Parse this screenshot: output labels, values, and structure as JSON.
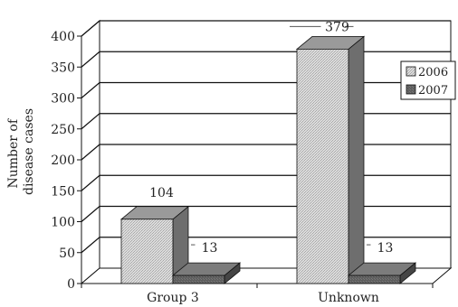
{
  "chart_data": {
    "type": "bar",
    "title": "",
    "xlabel": "",
    "ylabel": "Number of disease cases",
    "ylabel_lines": [
      "Number of",
      "disease cases"
    ],
    "categories": [
      "Group 3",
      "Unknown"
    ],
    "series": [
      {
        "name": "2006",
        "values": [
          104,
          379
        ]
      },
      {
        "name": "2007",
        "values": [
          13,
          13
        ]
      }
    ],
    "data_labels": [
      [
        "104",
        "13"
      ],
      [
        "379",
        "13"
      ]
    ],
    "ylim": [
      0,
      400
    ],
    "yticks": [
      0,
      50,
      100,
      150,
      200,
      250,
      300,
      350,
      400
    ],
    "grid": true,
    "three_d": true,
    "legend": "right",
    "colors": {
      "series_2006_front": "#d6d6d6",
      "series_2006_top": "#9a9a9a",
      "series_2006_side": "#6e6e6e",
      "series_2007_front": "#5f5f5f",
      "series_2007_top": "#7c7c7c",
      "series_2007_side": "#454545",
      "grid": "#111111",
      "axis": "#111111"
    }
  }
}
